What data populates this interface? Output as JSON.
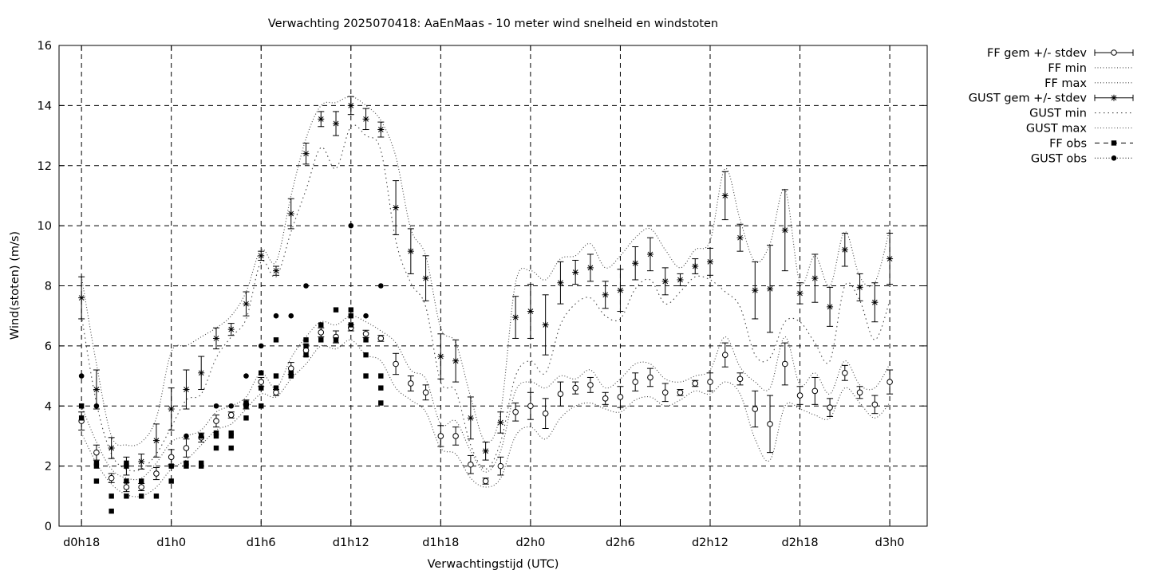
{
  "chart_data": {
    "type": "line",
    "title": "Verwachting 2025070418: AaEnMaas - 10 meter wind snelheid en windstoten",
    "xlabel": "Verwachtingstijd (UTC)",
    "ylabel": "Wind(stoten) (m/s)",
    "ylim": [
      0,
      16
    ],
    "xlim": [
      -1.5,
      56.5
    ],
    "x_unit": "hours since d0h18",
    "yticks": [
      0,
      2,
      4,
      6,
      8,
      10,
      12,
      14,
      16
    ],
    "xticks": [
      {
        "x": 0,
        "label": "d0h18"
      },
      {
        "x": 6,
        "label": "d1h0"
      },
      {
        "x": 12,
        "label": "d1h6"
      },
      {
        "x": 18,
        "label": "d1h12"
      },
      {
        "x": 24,
        "label": "d1h18"
      },
      {
        "x": 30,
        "label": "d2h0"
      },
      {
        "x": 36,
        "label": "d2h6"
      },
      {
        "x": 42,
        "label": "d2h12"
      },
      {
        "x": 48,
        "label": "d2h18"
      },
      {
        "x": 54,
        "label": "d3h0"
      }
    ],
    "grid": true,
    "legend_position": "outside-top-right",
    "legend": [
      {
        "label": "FF gem +/- stdev",
        "style": "errorbar-circle"
      },
      {
        "label": "FF min",
        "style": "dotted"
      },
      {
        "label": "FF max",
        "style": "dotted"
      },
      {
        "label": "GUST gem +/- stdev",
        "style": "errorbar-star"
      },
      {
        "label": "GUST min",
        "style": "dotted-sparse"
      },
      {
        "label": "GUST max",
        "style": "dotted"
      },
      {
        "label": "FF obs",
        "style": "dash-square"
      },
      {
        "label": "GUST obs",
        "style": "dotted-circle"
      }
    ],
    "x": [
      0,
      1,
      2,
      3,
      4,
      5,
      6,
      7,
      8,
      9,
      10,
      11,
      12,
      13,
      14,
      15,
      16,
      17,
      18,
      19,
      20,
      21,
      22,
      23,
      24,
      25,
      26,
      27,
      28,
      29,
      30,
      31,
      32,
      33,
      34,
      35,
      36,
      37,
      38,
      39,
      40,
      41,
      42,
      43,
      44,
      45,
      46,
      47,
      48,
      49,
      50,
      51,
      52,
      53,
      54
    ],
    "series": [
      {
        "name": "FF gem +/- stdev",
        "mean": [
          3.5,
          2.45,
          1.6,
          1.3,
          1.3,
          1.75,
          2.3,
          2.6,
          2.95,
          3.5,
          3.7,
          4.05,
          4.8,
          4.45,
          5.25,
          5.85,
          6.45,
          6.3,
          6.6,
          6.4,
          6.25,
          5.4,
          4.75,
          4.45,
          3.0,
          3.0,
          2.05,
          1.5,
          2.0,
          3.8,
          4.0,
          3.75,
          4.4,
          4.6,
          4.7,
          4.25,
          4.3,
          4.8,
          4.95,
          4.45,
          4.45,
          4.75,
          4.8,
          5.7,
          4.9,
          3.9,
          3.4,
          5.4,
          4.35,
          4.5,
          3.95,
          5.1,
          4.45,
          4.05,
          4.8
        ],
        "stdev": [
          0.3,
          0.25,
          0.15,
          0.15,
          0.12,
          0.2,
          0.25,
          0.3,
          0.15,
          0.2,
          0.1,
          0.15,
          0.15,
          0.1,
          0.2,
          0.2,
          0.15,
          0.2,
          0.1,
          0.12,
          0.1,
          0.35,
          0.25,
          0.25,
          0.35,
          0.3,
          0.3,
          0.1,
          0.3,
          0.3,
          0.45,
          0.5,
          0.4,
          0.2,
          0.25,
          0.2,
          0.35,
          0.3,
          0.3,
          0.3,
          0.1,
          0.1,
          0.3,
          0.4,
          0.2,
          0.6,
          0.95,
          0.7,
          0.3,
          0.45,
          0.3,
          0.25,
          0.2,
          0.3,
          0.4
        ]
      },
      {
        "name": "FF min",
        "values": [
          3.1,
          2.1,
          1.4,
          1.05,
          1.0,
          1.3,
          1.9,
          2.2,
          2.7,
          3.2,
          3.4,
          3.9,
          4.4,
          4.3,
          4.9,
          5.4,
          6.0,
          5.9,
          6.2,
          5.7,
          5.5,
          4.6,
          4.2,
          3.8,
          2.6,
          2.4,
          1.6,
          1.3,
          1.6,
          3.0,
          3.3,
          2.9,
          3.6,
          4.0,
          4.1,
          3.9,
          3.8,
          4.2,
          4.3,
          4.0,
          4.2,
          4.5,
          4.4,
          4.8,
          4.4,
          2.9,
          2.2,
          4.0,
          3.9,
          3.7,
          3.6,
          4.6,
          4.1,
          3.6,
          4.1
        ]
      },
      {
        "name": "FF max",
        "values": [
          4.0,
          2.8,
          1.9,
          1.6,
          1.6,
          2.1,
          2.8,
          3.0,
          3.2,
          3.8,
          4.0,
          4.3,
          5.1,
          4.6,
          5.6,
          6.3,
          6.8,
          6.7,
          7.0,
          6.8,
          6.5,
          6.1,
          5.2,
          4.9,
          3.4,
          3.5,
          2.5,
          1.8,
          2.5,
          4.5,
          4.8,
          4.6,
          5.0,
          4.9,
          5.2,
          4.6,
          4.9,
          5.4,
          5.4,
          4.9,
          4.8,
          5.0,
          5.2,
          6.3,
          5.3,
          4.8,
          4.6,
          6.3,
          4.7,
          5.1,
          4.4,
          5.5,
          4.7,
          4.6,
          5.4
        ]
      },
      {
        "name": "GUST gem +/- stdev",
        "mean": [
          7.6,
          4.55,
          2.6,
          2.0,
          2.15,
          2.85,
          3.9,
          4.55,
          5.1,
          6.25,
          6.55,
          7.4,
          9.0,
          8.5,
          10.4,
          12.4,
          13.55,
          13.4,
          14.0,
          13.55,
          13.2,
          10.6,
          9.15,
          8.25,
          5.65,
          5.5,
          3.6,
          2.5,
          3.45,
          6.95,
          7.15,
          6.7,
          8.1,
          8.45,
          8.6,
          7.7,
          7.85,
          8.75,
          9.05,
          8.15,
          8.2,
          8.65,
          8.8,
          11.0,
          9.6,
          7.85,
          7.9,
          9.85,
          7.75,
          8.25,
          7.3,
          9.2,
          7.95,
          7.45,
          8.9
        ],
        "stdev": [
          0.7,
          0.65,
          0.35,
          0.3,
          0.25,
          0.55,
          0.7,
          0.65,
          0.55,
          0.35,
          0.2,
          0.4,
          0.15,
          0.15,
          0.5,
          0.35,
          0.25,
          0.4,
          0.3,
          0.35,
          0.25,
          0.9,
          0.75,
          0.75,
          0.75,
          0.7,
          0.7,
          0.3,
          0.35,
          0.7,
          0.9,
          1.0,
          0.7,
          0.4,
          0.45,
          0.45,
          0.7,
          0.55,
          0.55,
          0.45,
          0.2,
          0.25,
          0.45,
          0.8,
          0.45,
          0.95,
          1.45,
          1.35,
          0.35,
          0.8,
          0.65,
          0.55,
          0.45,
          0.65,
          0.85
        ]
      },
      {
        "name": "GUST min",
        "values": [
          7.0,
          4.1,
          2.4,
          1.9,
          1.9,
          2.4,
          3.3,
          4.2,
          4.4,
          5.6,
          6.3,
          6.9,
          8.8,
          8.3,
          9.8,
          11.2,
          12.6,
          11.9,
          13.3,
          13.0,
          12.5,
          9.5,
          8.1,
          7.3,
          4.8,
          4.5,
          2.7,
          1.9,
          2.8,
          5.0,
          5.5,
          5.1,
          6.7,
          7.4,
          7.6,
          7.0,
          6.9,
          7.9,
          8.2,
          7.4,
          7.8,
          8.3,
          8.2,
          7.8,
          7.3,
          5.7,
          5.6,
          6.8,
          6.8,
          6.1,
          5.5,
          8.0,
          7.5,
          6.2,
          7.5
        ]
      },
      {
        "name": "GUST max",
        "values": [
          8.3,
          5.4,
          3.0,
          2.7,
          2.8,
          3.6,
          5.8,
          6.0,
          6.3,
          6.6,
          7.0,
          7.8,
          9.2,
          8.8,
          11.0,
          12.9,
          14.0,
          14.1,
          14.3,
          14.0,
          13.5,
          12.3,
          9.9,
          9.0,
          6.6,
          6.1,
          4.3,
          2.8,
          3.8,
          8.1,
          8.5,
          8.2,
          8.9,
          9.0,
          9.4,
          8.6,
          9.0,
          9.6,
          9.9,
          9.2,
          8.6,
          9.2,
          9.5,
          11.9,
          10.2,
          8.8,
          9.4,
          11.2,
          8.1,
          9.0,
          8.0,
          9.8,
          8.3,
          8.1,
          9.9
        ]
      },
      {
        "name": "FF obs",
        "points": [
          [
            0,
            4.0
          ],
          [
            0,
            3.6
          ],
          [
            1,
            2.1
          ],
          [
            1,
            2.0
          ],
          [
            1,
            1.5
          ],
          [
            2,
            1.0
          ],
          [
            2,
            0.5
          ],
          [
            3,
            2.1
          ],
          [
            3,
            2.0
          ],
          [
            3,
            1.5
          ],
          [
            3,
            1.0
          ],
          [
            4,
            1.5
          ],
          [
            4,
            1.0
          ],
          [
            5,
            1.0
          ],
          [
            6,
            2.0
          ],
          [
            6,
            1.5
          ],
          [
            7,
            2.1
          ],
          [
            7,
            2.0
          ],
          [
            8,
            3.0
          ],
          [
            8,
            2.1
          ],
          [
            8,
            2.0
          ],
          [
            9,
            3.1
          ],
          [
            9,
            3.0
          ],
          [
            9,
            2.6
          ],
          [
            10,
            3.1
          ],
          [
            10,
            3.0
          ],
          [
            10,
            2.6
          ],
          [
            11,
            4.1
          ],
          [
            11,
            4.0
          ],
          [
            11,
            3.6
          ],
          [
            12,
            5.1
          ],
          [
            12,
            4.6
          ],
          [
            12,
            4.0
          ],
          [
            13,
            6.2
          ],
          [
            13,
            5.0
          ],
          [
            13,
            4.6
          ],
          [
            14,
            5.1
          ],
          [
            14,
            5.0
          ],
          [
            15,
            6.2
          ],
          [
            15,
            6.0
          ],
          [
            15,
            5.7
          ],
          [
            16,
            6.7
          ],
          [
            16,
            6.2
          ],
          [
            17,
            7.2
          ],
          [
            17,
            6.2
          ],
          [
            18,
            7.2
          ],
          [
            18,
            7.0
          ],
          [
            18,
            6.7
          ],
          [
            19,
            6.2
          ],
          [
            19,
            5.7
          ],
          [
            19,
            5.0
          ],
          [
            20,
            5.0
          ],
          [
            20,
            4.6
          ],
          [
            20,
            4.1
          ]
        ]
      },
      {
        "name": "GUST obs",
        "points": [
          [
            0,
            5.0
          ],
          [
            1,
            4.0
          ],
          [
            6,
            2.0
          ],
          [
            7,
            3.0
          ],
          [
            8,
            3.0
          ],
          [
            9,
            4.0
          ],
          [
            10,
            4.0
          ],
          [
            11,
            5.0
          ],
          [
            12,
            6.0
          ],
          [
            13,
            7.0
          ],
          [
            14,
            7.0
          ],
          [
            15,
            8.0
          ],
          [
            18,
            10.0
          ],
          [
            19,
            7.0
          ],
          [
            20,
            8.0
          ]
        ]
      }
    ]
  }
}
